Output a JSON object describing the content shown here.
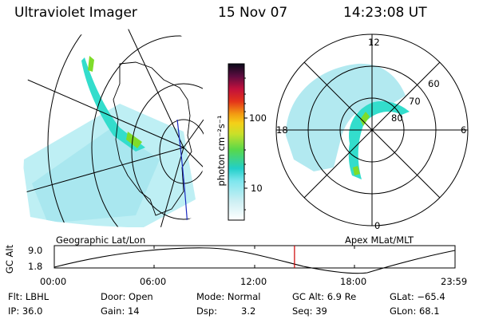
{
  "header": {
    "instrument": "Ultraviolet Imager",
    "date": "15 Nov 07",
    "time": "14:23:08 UT"
  },
  "colorbar": {
    "unit_label": "photon cm⁻²s⁻¹",
    "ticks": [
      "100",
      "10"
    ]
  },
  "polar_plot": {
    "mlt_labels": [
      "12",
      "18",
      "6",
      "0"
    ],
    "lat_labels": [
      "60",
      "70",
      "80"
    ]
  },
  "altitude_strip": {
    "left_title": "Geographic Lat/Lon",
    "right_title": "Apex MLat/MLT",
    "ylabel": "GC Alt",
    "y_ticks": [
      "9.0",
      "1.8"
    ],
    "time_ticks": [
      "00:00",
      "06:00",
      "12:00",
      "18:00",
      "23:59"
    ],
    "current_time_fraction": 0.5994
  },
  "info": {
    "filter": "Flt: LBHL",
    "door": "Door: Open",
    "mode": "Mode: Normal",
    "gc_alt": "GC Alt: 6.9 Re",
    "glat": "GLat: −65.4",
    "ip": "IP: 36.0",
    "gain": "Gain: 14",
    "dsp_label": "Dsp:",
    "dsp_value": "3.2",
    "seq": "Seq: 39",
    "glon": "GLon: 68.1"
  },
  "colors": {
    "aurora_low": "#86e4ee",
    "aurora_mid": "#33ddcc",
    "aurora_high": "#7fdc2a",
    "marker": "#cc0000",
    "track": "#1a2ac0"
  }
}
